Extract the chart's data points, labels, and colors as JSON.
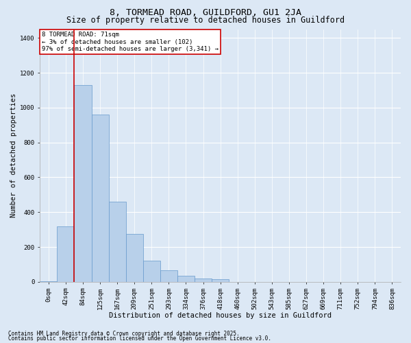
{
  "title1": "8, TORMEAD ROAD, GUILDFORD, GU1 2JA",
  "title2": "Size of property relative to detached houses in Guildford",
  "xlabel": "Distribution of detached houses by size in Guildford",
  "ylabel": "Number of detached properties",
  "annotation_line1": "8 TORMEAD ROAD: 71sqm",
  "annotation_line2": "← 3% of detached houses are smaller (102)",
  "annotation_line3": "97% of semi-detached houses are larger (3,341) →",
  "footer1": "Contains HM Land Registry data © Crown copyright and database right 2025.",
  "footer2": "Contains public sector information licensed under the Open Government Licence v3.0.",
  "bin_labels": [
    "0sqm",
    "42sqm",
    "84sqm",
    "125sqm",
    "167sqm",
    "209sqm",
    "251sqm",
    "293sqm",
    "334sqm",
    "376sqm",
    "418sqm",
    "460sqm",
    "502sqm",
    "543sqm",
    "585sqm",
    "627sqm",
    "669sqm",
    "711sqm",
    "752sqm",
    "794sqm",
    "836sqm"
  ],
  "bar_heights": [
    5,
    320,
    1130,
    960,
    460,
    275,
    120,
    65,
    35,
    20,
    15,
    0,
    0,
    0,
    0,
    0,
    0,
    0,
    0,
    0,
    0
  ],
  "bar_color": "#b8d0ea",
  "bar_edge_color": "#6699cc",
  "vline_color": "#cc0000",
  "vline_x": 1.5,
  "ylim": [
    0,
    1450
  ],
  "yticks": [
    0,
    200,
    400,
    600,
    800,
    1000,
    1200,
    1400
  ],
  "bg_color": "#dce8f5",
  "plot_bg_color": "#dce8f5",
  "grid_color": "#ffffff",
  "annotation_box_facecolor": "#ffffff",
  "annotation_box_edgecolor": "#cc0000",
  "title_fontsize": 9.5,
  "subtitle_fontsize": 8.5,
  "label_fontsize": 7.5,
  "tick_fontsize": 6.5,
  "annot_fontsize": 6.5,
  "footer_fontsize": 5.5
}
